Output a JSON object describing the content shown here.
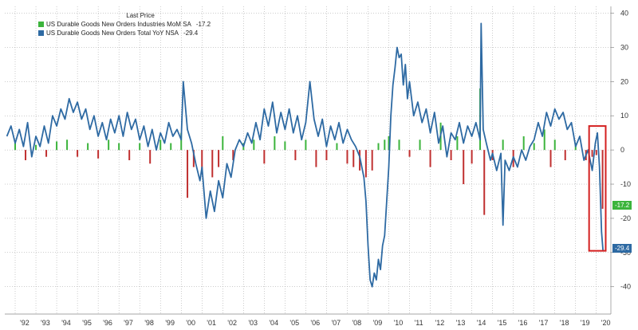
{
  "legend": {
    "title": "Last Price",
    "entries": [
      {
        "label": "US Durable Goods New Orders Industries MoM SA",
        "value": "-17.2",
        "color": "#3cb43c"
      },
      {
        "label": "US Durable Goods New Orders Total YoY NSA",
        "value": "-29.4",
        "color": "#2e6aa3"
      }
    ]
  },
  "badges": [
    {
      "text": "-17.2",
      "color": "#3cb43c",
      "neg_color": "#c03030"
    },
    {
      "text": "-29.4",
      "color": "#2e6aa3"
    }
  ],
  "chart_data": {
    "type": "bar",
    "y_ticks": [
      "40",
      "30",
      "20",
      "10",
      "0",
      "-10",
      "-20",
      "-30",
      "-40"
    ],
    "y_tick_values": [
      40,
      30,
      20,
      10,
      0,
      -10,
      -20,
      -30,
      -40
    ],
    "ylim": [
      -48,
      42
    ],
    "x_ticks": [
      "'92",
      "'93",
      "'94",
      "'95",
      "'96",
      "'97",
      "'98",
      "'99",
      "'00",
      "'01",
      "'02",
      "'03",
      "'04",
      "'05",
      "'06",
      "'07",
      "'08",
      "'09",
      "'10",
      "'11",
      "'12",
      "'13",
      "'14",
      "'15",
      "'16",
      "'17",
      "'18",
      "'19",
      "'20"
    ],
    "x_range": [
      1991.5,
      2020.7
    ],
    "highlight": {
      "x_start": 2019.65,
      "x_end": 2020.45,
      "y_top": 7,
      "y_bottom": -29.5,
      "color": "#d42020"
    },
    "series": [
      {
        "name": "US Durable Goods New Orders Industries MoM SA",
        "type": "bar",
        "color_pos": "#3cb43c",
        "color_neg": "#c03030",
        "points": [
          [
            1992.0,
            2
          ],
          [
            1992.5,
            -3
          ],
          [
            1993.0,
            1.5
          ],
          [
            1993.5,
            -2
          ],
          [
            1994.0,
            2.5
          ],
          [
            1994.5,
            3
          ],
          [
            1995.0,
            -2
          ],
          [
            1995.5,
            2
          ],
          [
            1996.0,
            -2.5
          ],
          [
            1996.5,
            3
          ],
          [
            1997.0,
            2
          ],
          [
            1997.5,
            -3
          ],
          [
            1998.0,
            2
          ],
          [
            1998.5,
            -4
          ],
          [
            1999.0,
            3
          ],
          [
            1999.5,
            2
          ],
          [
            2000.0,
            5
          ],
          [
            2000.3,
            -14
          ],
          [
            2000.6,
            -5
          ],
          [
            2001.0,
            -7
          ],
          [
            2001.5,
            -8
          ],
          [
            2001.8,
            -5
          ],
          [
            2002.0,
            4
          ],
          [
            2002.5,
            -3
          ],
          [
            2003.0,
            2
          ],
          [
            2003.5,
            3
          ],
          [
            2004.0,
            -4
          ],
          [
            2004.5,
            4
          ],
          [
            2005.0,
            2.5
          ],
          [
            2005.5,
            -3
          ],
          [
            2006.0,
            3
          ],
          [
            2006.5,
            -5
          ],
          [
            2007.0,
            -3
          ],
          [
            2007.5,
            2
          ],
          [
            2008.0,
            -4
          ],
          [
            2008.3,
            -5
          ],
          [
            2008.6,
            -6
          ],
          [
            2008.9,
            -8
          ],
          [
            2009.2,
            -6
          ],
          [
            2009.5,
            2
          ],
          [
            2009.8,
            3
          ],
          [
            2010.0,
            4
          ],
          [
            2010.5,
            3
          ],
          [
            2011.0,
            -2
          ],
          [
            2011.5,
            3
          ],
          [
            2012.0,
            -5
          ],
          [
            2012.5,
            8
          ],
          [
            2013.0,
            -3
          ],
          [
            2013.3,
            4
          ],
          [
            2013.6,
            -10
          ],
          [
            2014.0,
            -4
          ],
          [
            2014.4,
            18
          ],
          [
            2014.6,
            -19
          ],
          [
            2015.0,
            -3
          ],
          [
            2015.5,
            3
          ],
          [
            2016.0,
            -5
          ],
          [
            2016.5,
            4
          ],
          [
            2017.0,
            2
          ],
          [
            2017.5,
            6
          ],
          [
            2017.8,
            -5
          ],
          [
            2018.0,
            3
          ],
          [
            2018.5,
            -3
          ],
          [
            2019.0,
            2
          ],
          [
            2019.5,
            -3
          ],
          [
            2019.8,
            -2
          ],
          [
            2020.0,
            -1.5
          ],
          [
            2020.3,
            -17.2
          ]
        ]
      },
      {
        "name": "US Durable Goods New Orders Total YoY NSA",
        "type": "line",
        "color": "#2e6aa3",
        "points": [
          [
            1991.6,
            4
          ],
          [
            1991.8,
            7
          ],
          [
            1992.0,
            2
          ],
          [
            1992.2,
            6
          ],
          [
            1992.4,
            1
          ],
          [
            1992.6,
            8
          ],
          [
            1992.8,
            -2
          ],
          [
            1993.0,
            4
          ],
          [
            1993.2,
            1
          ],
          [
            1993.4,
            7
          ],
          [
            1993.6,
            2
          ],
          [
            1993.8,
            10
          ],
          [
            1994.0,
            7
          ],
          [
            1994.2,
            12
          ],
          [
            1994.4,
            9
          ],
          [
            1994.6,
            15
          ],
          [
            1994.8,
            11
          ],
          [
            1995.0,
            14
          ],
          [
            1995.2,
            9
          ],
          [
            1995.4,
            12
          ],
          [
            1995.6,
            6
          ],
          [
            1995.8,
            10
          ],
          [
            1996.0,
            4
          ],
          [
            1996.2,
            8
          ],
          [
            1996.4,
            3
          ],
          [
            1996.6,
            9
          ],
          [
            1996.8,
            5
          ],
          [
            1997.0,
            10
          ],
          [
            1997.2,
            4
          ],
          [
            1997.4,
            11
          ],
          [
            1997.6,
            6
          ],
          [
            1997.8,
            9
          ],
          [
            1998.0,
            3
          ],
          [
            1998.2,
            7
          ],
          [
            1998.4,
            1
          ],
          [
            1998.6,
            6
          ],
          [
            1998.8,
            0
          ],
          [
            1999.0,
            5
          ],
          [
            1999.2,
            2
          ],
          [
            1999.4,
            8
          ],
          [
            1999.6,
            4
          ],
          [
            1999.8,
            6
          ],
          [
            2000.0,
            3
          ],
          [
            2000.1,
            20
          ],
          [
            2000.3,
            6
          ],
          [
            2000.5,
            2
          ],
          [
            2000.7,
            -4
          ],
          [
            2000.9,
            -9
          ],
          [
            2001.0,
            -5
          ],
          [
            2001.2,
            -20
          ],
          [
            2001.4,
            -12
          ],
          [
            2001.6,
            -18
          ],
          [
            2001.8,
            -9
          ],
          [
            2002.0,
            -14
          ],
          [
            2002.2,
            -4
          ],
          [
            2002.4,
            -8
          ],
          [
            2002.6,
            0
          ],
          [
            2002.8,
            3
          ],
          [
            2003.0,
            1
          ],
          [
            2003.2,
            5
          ],
          [
            2003.4,
            2
          ],
          [
            2003.6,
            8
          ],
          [
            2003.8,
            3
          ],
          [
            2004.0,
            12
          ],
          [
            2004.2,
            7
          ],
          [
            2004.4,
            14
          ],
          [
            2004.6,
            5
          ],
          [
            2004.8,
            11
          ],
          [
            2005.0,
            6
          ],
          [
            2005.2,
            12
          ],
          [
            2005.4,
            5
          ],
          [
            2005.6,
            10
          ],
          [
            2005.8,
            3
          ],
          [
            2006.0,
            8
          ],
          [
            2006.2,
            20
          ],
          [
            2006.4,
            9
          ],
          [
            2006.6,
            4
          ],
          [
            2006.8,
            9
          ],
          [
            2007.0,
            1
          ],
          [
            2007.2,
            7
          ],
          [
            2007.4,
            3
          ],
          [
            2007.6,
            8
          ],
          [
            2007.8,
            2
          ],
          [
            2008.0,
            6
          ],
          [
            2008.2,
            3
          ],
          [
            2008.4,
            1
          ],
          [
            2008.6,
            -2
          ],
          [
            2008.8,
            -8
          ],
          [
            2008.9,
            -15
          ],
          [
            2009.0,
            -28
          ],
          [
            2009.1,
            -38
          ],
          [
            2009.2,
            -40
          ],
          [
            2009.3,
            -36
          ],
          [
            2009.4,
            -38
          ],
          [
            2009.5,
            -32
          ],
          [
            2009.6,
            -35
          ],
          [
            2009.7,
            -28
          ],
          [
            2009.8,
            -25
          ],
          [
            2009.9,
            -15
          ],
          [
            2010.0,
            -5
          ],
          [
            2010.1,
            10
          ],
          [
            2010.2,
            19
          ],
          [
            2010.3,
            24
          ],
          [
            2010.4,
            30
          ],
          [
            2010.5,
            27
          ],
          [
            2010.6,
            28
          ],
          [
            2010.7,
            19
          ],
          [
            2010.8,
            25
          ],
          [
            2010.9,
            15
          ],
          [
            2011.0,
            20
          ],
          [
            2011.2,
            10
          ],
          [
            2011.4,
            14
          ],
          [
            2011.6,
            8
          ],
          [
            2011.8,
            12
          ],
          [
            2012.0,
            5
          ],
          [
            2012.2,
            11
          ],
          [
            2012.4,
            2
          ],
          [
            2012.6,
            7
          ],
          [
            2012.8,
            -2
          ],
          [
            2013.0,
            5
          ],
          [
            2013.2,
            3
          ],
          [
            2013.4,
            8
          ],
          [
            2013.6,
            2
          ],
          [
            2013.8,
            7
          ],
          [
            2014.0,
            4
          ],
          [
            2014.2,
            8
          ],
          [
            2014.4,
            3
          ],
          [
            2014.45,
            37
          ],
          [
            2014.55,
            6
          ],
          [
            2014.7,
            2
          ],
          [
            2014.9,
            -3
          ],
          [
            2015.0,
            -1
          ],
          [
            2015.2,
            -6
          ],
          [
            2015.4,
            -1
          ],
          [
            2015.5,
            -22
          ],
          [
            2015.6,
            -3
          ],
          [
            2015.8,
            -6
          ],
          [
            2016.0,
            -2
          ],
          [
            2016.2,
            -5
          ],
          [
            2016.4,
            0
          ],
          [
            2016.6,
            -3
          ],
          [
            2016.8,
            1
          ],
          [
            2017.0,
            3
          ],
          [
            2017.2,
            8
          ],
          [
            2017.4,
            4
          ],
          [
            2017.6,
            11
          ],
          [
            2017.8,
            7
          ],
          [
            2018.0,
            12
          ],
          [
            2018.2,
            9
          ],
          [
            2018.4,
            11
          ],
          [
            2018.6,
            6
          ],
          [
            2018.8,
            8
          ],
          [
            2019.0,
            1
          ],
          [
            2019.2,
            4
          ],
          [
            2019.4,
            -3
          ],
          [
            2019.6,
            0
          ],
          [
            2019.8,
            -6
          ],
          [
            2019.95,
            2
          ],
          [
            2020.05,
            5
          ],
          [
            2020.15,
            -5
          ],
          [
            2020.25,
            -24
          ],
          [
            2020.32,
            -29.4
          ]
        ]
      }
    ]
  }
}
